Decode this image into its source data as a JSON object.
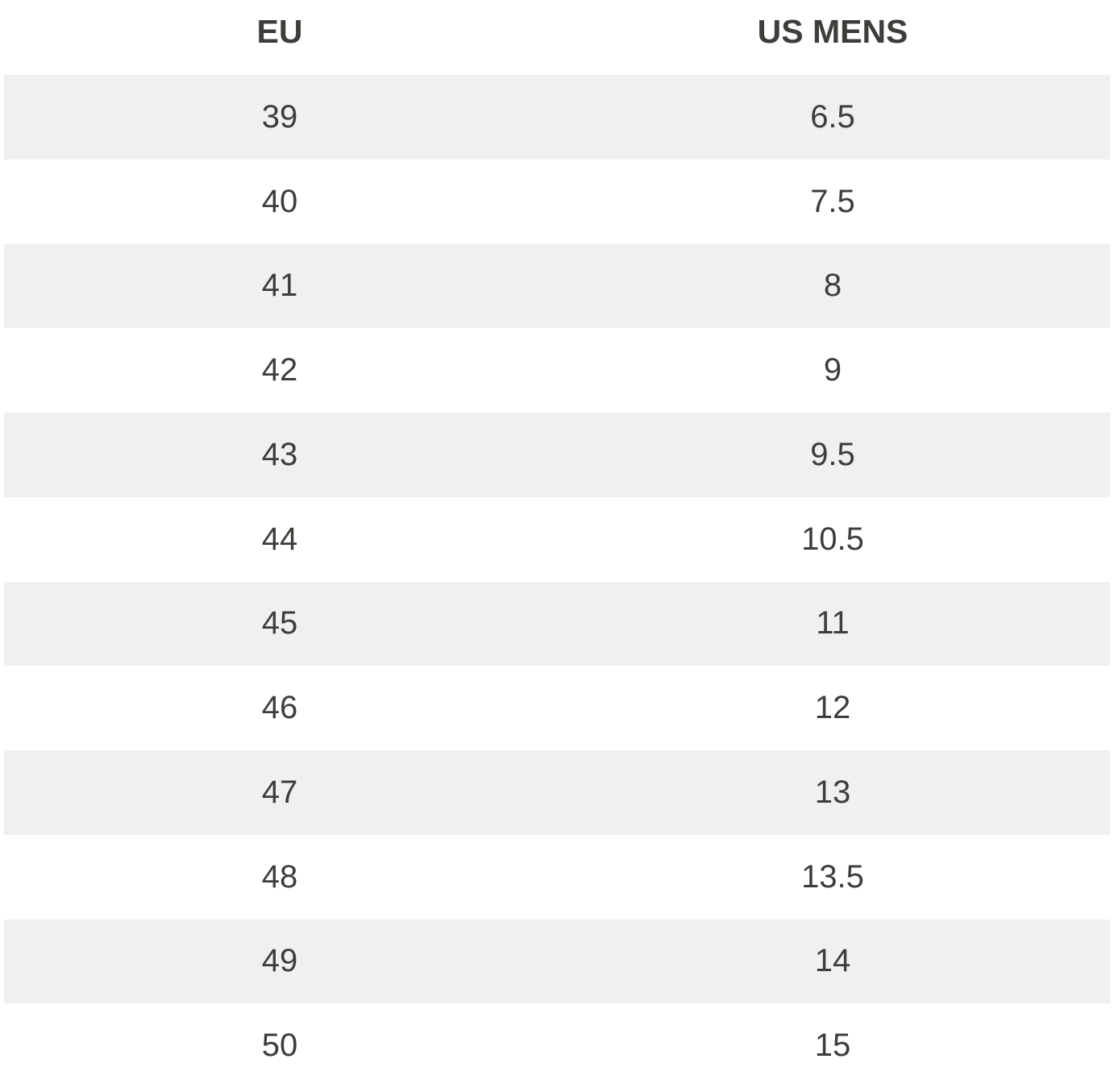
{
  "table": {
    "header": [
      "EU",
      "US MENS"
    ],
    "rows": [
      [
        39,
        6.5
      ],
      [
        40,
        7.5
      ],
      [
        41,
        8
      ],
      [
        42,
        9
      ],
      [
        43,
        9.5
      ],
      [
        44,
        10.5
      ],
      [
        45,
        11
      ],
      [
        46,
        12
      ],
      [
        47,
        13
      ],
      [
        48,
        13.5
      ],
      [
        49,
        14
      ],
      [
        50,
        15
      ]
    ]
  }
}
